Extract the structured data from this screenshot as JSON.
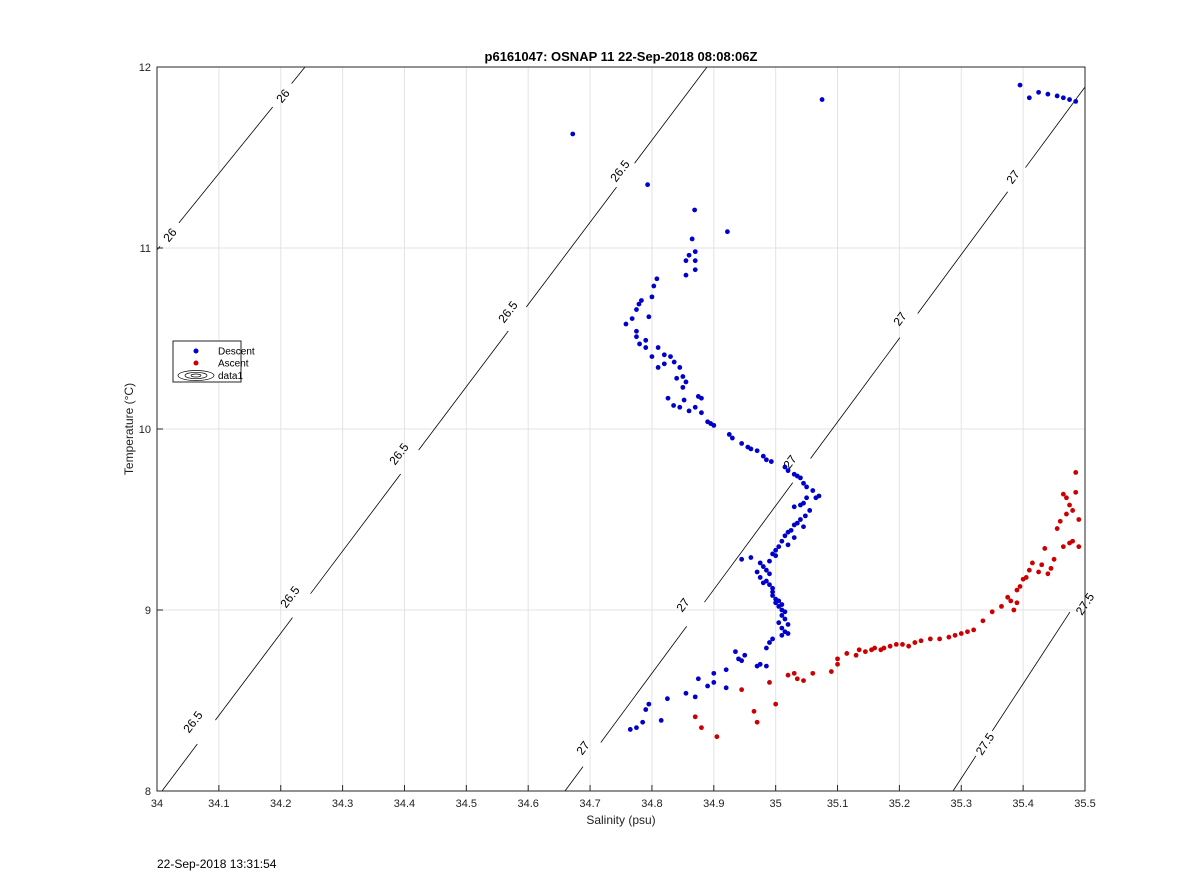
{
  "timestamp": "22-Sep-2018 13:31:54",
  "chart_data": {
    "type": "scatter",
    "title": "p6161047: OSNAP 11 22-Sep-2018 08:08:06Z",
    "xlabel": "Salinity (psu)",
    "ylabel": "Temperature (°C)",
    "xlim": [
      34,
      35.5
    ],
    "ylim": [
      8,
      12
    ],
    "xticks": [
      "34",
      "34.1",
      "34.2",
      "34.3",
      "34.4",
      "34.5",
      "34.6",
      "34.7",
      "34.8",
      "34.9",
      "35",
      "35.1",
      "35.2",
      "35.3",
      "35.4",
      "35.5"
    ],
    "yticks": [
      "8",
      "9",
      "10",
      "11",
      "12"
    ],
    "grid": true,
    "legend": {
      "placement": "left",
      "entries": [
        "Descent",
        "Ascent",
        "data1"
      ]
    },
    "colors": {
      "descent": "#0000cc",
      "ascent": "#cc0000",
      "contour": "#000000",
      "grid": "#e3e3e3"
    },
    "contours": [
      {
        "level": "26",
        "labels": [
          "26",
          "26"
        ]
      },
      {
        "level": "26.5",
        "labels": [
          "26.5",
          "26.5",
          "26.5",
          "26.5",
          "26.5"
        ]
      },
      {
        "level": "27",
        "labels": [
          "27",
          "27",
          "27",
          "27",
          "27"
        ]
      },
      {
        "level": "27.5",
        "labels": [
          "27.5",
          "27.5"
        ]
      }
    ],
    "series": [
      {
        "name": "Descent",
        "points": [
          [
            34.672,
            11.63
          ],
          [
            35.075,
            11.82
          ],
          [
            34.793,
            11.35
          ],
          [
            34.869,
            11.21
          ],
          [
            34.922,
            11.09
          ],
          [
            34.865,
            11.05
          ],
          [
            34.87,
            10.98
          ],
          [
            34.86,
            10.96
          ],
          [
            34.87,
            10.93
          ],
          [
            34.855,
            10.93
          ],
          [
            34.87,
            10.88
          ],
          [
            34.855,
            10.85
          ],
          [
            34.808,
            10.83
          ],
          [
            34.803,
            10.79
          ],
          [
            34.783,
            10.71
          ],
          [
            34.779,
            10.69
          ],
          [
            34.8,
            10.73
          ],
          [
            34.775,
            10.66
          ],
          [
            34.795,
            10.62
          ],
          [
            34.768,
            10.61
          ],
          [
            34.758,
            10.58
          ],
          [
            34.775,
            10.54
          ],
          [
            34.775,
            10.51
          ],
          [
            34.79,
            10.49
          ],
          [
            34.78,
            10.47
          ],
          [
            34.81,
            10.45
          ],
          [
            34.79,
            10.45
          ],
          [
            34.82,
            10.41
          ],
          [
            34.83,
            10.4
          ],
          [
            34.8,
            10.4
          ],
          [
            34.836,
            10.37
          ],
          [
            34.82,
            10.36
          ],
          [
            34.81,
            10.34
          ],
          [
            34.845,
            10.34
          ],
          [
            34.85,
            10.29
          ],
          [
            34.84,
            10.28
          ],
          [
            34.855,
            10.26
          ],
          [
            34.85,
            10.23
          ],
          [
            34.875,
            10.18
          ],
          [
            34.88,
            10.17
          ],
          [
            34.826,
            10.17
          ],
          [
            34.852,
            10.16
          ],
          [
            34.835,
            10.13
          ],
          [
            34.845,
            10.12
          ],
          [
            34.87,
            10.12
          ],
          [
            34.86,
            10.1
          ],
          [
            34.88,
            10.09
          ],
          [
            34.89,
            10.04
          ],
          [
            34.9,
            10.02
          ],
          [
            34.895,
            10.03
          ],
          [
            34.925,
            9.97
          ],
          [
            34.93,
            9.95
          ],
          [
            34.945,
            9.92
          ],
          [
            34.955,
            9.9
          ],
          [
            34.96,
            9.89
          ],
          [
            34.97,
            9.88
          ],
          [
            34.98,
            9.85
          ],
          [
            34.985,
            9.83
          ],
          [
            34.993,
            9.82
          ],
          [
            35.015,
            9.79
          ],
          [
            35.02,
            9.77
          ],
          [
            35.03,
            9.75
          ],
          [
            35.035,
            9.74
          ],
          [
            35.04,
            9.73
          ],
          [
            35.045,
            9.7
          ],
          [
            35.05,
            9.68
          ],
          [
            35.06,
            9.66
          ],
          [
            35.07,
            9.63
          ],
          [
            35.065,
            9.62
          ],
          [
            35.05,
            9.62
          ],
          [
            35.045,
            9.59
          ],
          [
            35.04,
            9.58
          ],
          [
            35.03,
            9.57
          ],
          [
            35.055,
            9.55
          ],
          [
            35.048,
            9.52
          ],
          [
            35.04,
            9.5
          ],
          [
            35.035,
            9.48
          ],
          [
            35.03,
            9.47
          ],
          [
            35.045,
            9.46
          ],
          [
            35.025,
            9.44
          ],
          [
            35.02,
            9.43
          ],
          [
            35.015,
            9.41
          ],
          [
            35.03,
            9.4
          ],
          [
            35.01,
            9.38
          ],
          [
            35.02,
            9.36
          ],
          [
            35.005,
            9.35
          ],
          [
            35.0,
            9.33
          ],
          [
            34.995,
            9.31
          ],
          [
            35.0,
            9.3
          ],
          [
            34.96,
            9.29
          ],
          [
            34.945,
            9.28
          ],
          [
            34.99,
            9.27
          ],
          [
            34.975,
            9.26
          ],
          [
            34.98,
            9.24
          ],
          [
            34.985,
            9.22
          ],
          [
            34.97,
            9.21
          ],
          [
            34.99,
            9.2
          ],
          [
            34.975,
            9.18
          ],
          [
            34.985,
            9.16
          ],
          [
            34.98,
            9.15
          ],
          [
            34.99,
            9.14
          ],
          [
            34.995,
            9.12
          ],
          [
            34.995,
            9.1
          ],
          [
            34.995,
            9.08
          ],
          [
            35.0,
            9.06
          ],
          [
            35.005,
            9.05
          ],
          [
            35.0,
            9.04
          ],
          [
            35.01,
            9.03
          ],
          [
            35.005,
            9.02
          ],
          [
            35.01,
            9.0
          ],
          [
            35.015,
            8.99
          ],
          [
            35.01,
            8.97
          ],
          [
            35.015,
            8.95
          ],
          [
            35.005,
            8.93
          ],
          [
            35.02,
            8.92
          ],
          [
            35.01,
            8.9
          ],
          [
            35.015,
            8.88
          ],
          [
            35.02,
            8.87
          ],
          [
            35.01,
            8.86
          ],
          [
            34.995,
            8.84
          ],
          [
            34.99,
            8.82
          ],
          [
            34.985,
            8.79
          ],
          [
            34.935,
            8.77
          ],
          [
            34.95,
            8.75
          ],
          [
            34.94,
            8.73
          ],
          [
            34.945,
            8.72
          ],
          [
            34.975,
            8.7
          ],
          [
            34.985,
            8.69
          ],
          [
            34.97,
            8.69
          ],
          [
            34.92,
            8.67
          ],
          [
            34.9,
            8.65
          ],
          [
            34.875,
            8.62
          ],
          [
            34.9,
            8.6
          ],
          [
            34.89,
            8.58
          ],
          [
            34.92,
            8.57
          ],
          [
            34.855,
            8.54
          ],
          [
            34.87,
            8.52
          ],
          [
            34.825,
            8.51
          ],
          [
            34.795,
            8.48
          ],
          [
            34.79,
            8.45
          ],
          [
            34.815,
            8.39
          ],
          [
            34.765,
            8.34
          ],
          [
            34.775,
            8.35
          ],
          [
            34.785,
            8.38
          ],
          [
            35.395,
            11.9
          ],
          [
            35.41,
            11.83
          ],
          [
            35.425,
            11.86
          ],
          [
            35.44,
            11.85
          ],
          [
            35.455,
            11.84
          ],
          [
            35.465,
            11.83
          ],
          [
            35.475,
            11.82
          ],
          [
            35.485,
            11.81
          ]
        ]
      },
      {
        "name": "Ascent",
        "points": [
          [
            34.87,
            8.41
          ],
          [
            34.88,
            8.35
          ],
          [
            34.905,
            8.3
          ],
          [
            34.945,
            8.56
          ],
          [
            34.965,
            8.44
          ],
          [
            34.97,
            8.38
          ],
          [
            34.99,
            8.6
          ],
          [
            35.0,
            8.48
          ],
          [
            35.02,
            8.64
          ],
          [
            35.03,
            8.65
          ],
          [
            35.035,
            8.62
          ],
          [
            35.045,
            8.61
          ],
          [
            35.06,
            8.65
          ],
          [
            35.09,
            8.66
          ],
          [
            35.1,
            8.7
          ],
          [
            35.1,
            8.73
          ],
          [
            35.115,
            8.76
          ],
          [
            35.13,
            8.75
          ],
          [
            35.135,
            8.78
          ],
          [
            35.145,
            8.77
          ],
          [
            35.155,
            8.78
          ],
          [
            35.16,
            8.79
          ],
          [
            35.17,
            8.78
          ],
          [
            35.175,
            8.79
          ],
          [
            35.185,
            8.8
          ],
          [
            35.195,
            8.81
          ],
          [
            35.205,
            8.81
          ],
          [
            35.215,
            8.8
          ],
          [
            35.225,
            8.82
          ],
          [
            35.235,
            8.83
          ],
          [
            35.25,
            8.84
          ],
          [
            35.265,
            8.84
          ],
          [
            35.28,
            8.85
          ],
          [
            35.29,
            8.86
          ],
          [
            35.3,
            8.87
          ],
          [
            35.31,
            8.88
          ],
          [
            35.32,
            8.89
          ],
          [
            35.335,
            8.94
          ],
          [
            35.35,
            8.99
          ],
          [
            35.365,
            9.02
          ],
          [
            35.375,
            9.07
          ],
          [
            35.38,
            9.05
          ],
          [
            35.39,
            9.04
          ],
          [
            35.385,
            9.0
          ],
          [
            35.39,
            9.11
          ],
          [
            35.395,
            9.13
          ],
          [
            35.4,
            9.17
          ],
          [
            35.405,
            9.18
          ],
          [
            35.41,
            9.22
          ],
          [
            35.415,
            9.26
          ],
          [
            35.425,
            9.21
          ],
          [
            35.43,
            9.25
          ],
          [
            35.435,
            9.34
          ],
          [
            35.44,
            9.2
          ],
          [
            35.445,
            9.23
          ],
          [
            35.45,
            9.28
          ],
          [
            35.455,
            9.45
          ],
          [
            35.46,
            9.49
          ],
          [
            35.465,
            9.64
          ],
          [
            35.47,
            9.62
          ],
          [
            35.465,
            9.35
          ],
          [
            35.47,
            9.53
          ],
          [
            35.475,
            9.37
          ],
          [
            35.475,
            9.58
          ],
          [
            35.48,
            9.38
          ],
          [
            35.48,
            9.55
          ],
          [
            35.485,
            9.65
          ],
          [
            35.485,
            9.76
          ],
          [
            35.49,
            9.5
          ],
          [
            35.49,
            9.35
          ]
        ]
      }
    ]
  }
}
